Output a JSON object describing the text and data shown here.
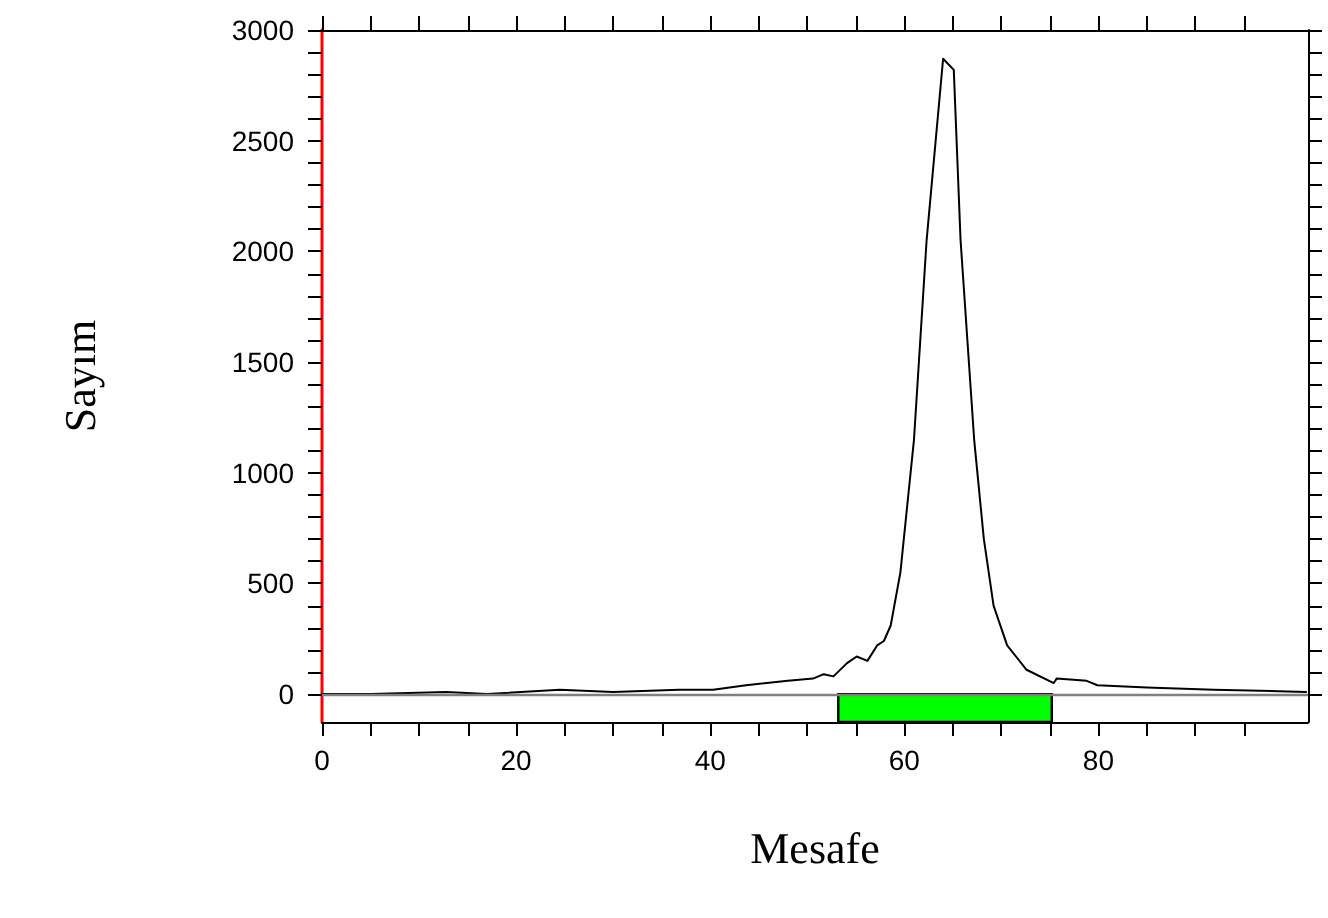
{
  "chart_data": {
    "type": "line",
    "xlabel": "Mesafe",
    "ylabel": "Sayım",
    "x": [
      0,
      5,
      12.8,
      17,
      24.5,
      30,
      36.8,
      40.3,
      43.7,
      48,
      50.6,
      51.7,
      52.7,
      54.1,
      55.1,
      56.2,
      57.2,
      57.9,
      58.6,
      59.6,
      61.0,
      62.3,
      64.0,
      65.1,
      65.8,
      67.2,
      68.2,
      69.2,
      70.6,
      72.6,
      75.4,
      75.7,
      78.8,
      79.9,
      85,
      91.9,
      101.4
    ],
    "series": [
      {
        "color": "#000000",
        "values": [
          0,
          0,
          10,
          0,
          20,
          10,
          20,
          20,
          40,
          60,
          70,
          90,
          80,
          140,
          170,
          150,
          220,
          240,
          310,
          550,
          1150,
          2050,
          2870,
          2820,
          2050,
          1150,
          700,
          400,
          220,
          110,
          50,
          70,
          60,
          40,
          30,
          20,
          10
        ]
      }
    ],
    "xlim": [
      0,
      101.6
    ],
    "xticks": [
      0,
      {
        "value": 5,
        "label": null
      },
      {
        "value": 10,
        "label": null
      },
      {
        "value": 15,
        "label": null
      },
      20,
      {
        "value": 25,
        "label": null
      },
      {
        "value": 30,
        "label": null
      },
      {
        "value": 35,
        "label": null
      },
      40,
      {
        "value": 45,
        "label": null
      },
      {
        "value": 50,
        "label": null
      },
      {
        "value": 55,
        "label": null
      },
      60,
      {
        "value": 65,
        "label": null
      },
      {
        "value": 70,
        "label": null
      },
      {
        "value": 75,
        "label": null
      },
      80,
      {
        "value": 85,
        "label": null
      },
      {
        "value": 90,
        "label": null
      },
      {
        "value": 95,
        "label": null
      }
    ],
    "ylim": [
      -126,
      3000
    ],
    "yticks": [
      0,
      {
        "value": 100,
        "label": null
      },
      {
        "value": 200,
        "label": null
      },
      {
        "value": 300,
        "label": null
      },
      {
        "value": 400,
        "label": null
      },
      500,
      {
        "value": 600,
        "label": null
      },
      {
        "value": 700,
        "label": null
      },
      {
        "value": 800,
        "label": null
      },
      {
        "value": 900,
        "label": null
      },
      1000,
      {
        "value": 1100,
        "label": null
      },
      {
        "value": 1200,
        "label": null
      },
      {
        "value": 1300,
        "label": null
      },
      {
        "value": 1400,
        "label": null
      },
      1500,
      {
        "value": 1600,
        "label": null
      },
      {
        "value": 1700,
        "label": null
      },
      {
        "value": 1800,
        "label": null
      },
      {
        "value": 1900,
        "label": null
      },
      2000,
      {
        "value": 2100,
        "label": null
      },
      {
        "value": 2200,
        "label": null
      },
      {
        "value": 2300,
        "label": null
      },
      {
        "value": 2400,
        "label": null
      },
      2500,
      {
        "value": 2600,
        "label": null
      },
      {
        "value": 2700,
        "label": null
      },
      {
        "value": 2800,
        "label": null
      },
      {
        "value": 2900,
        "label": null
      },
      3000
    ],
    "ref_lines": [
      {
        "axis": "y",
        "value": 0,
        "color": "#808080"
      }
    ],
    "bands": [
      {
        "axis": "x",
        "from": 53.2,
        "to": 75.2,
        "color": "#00ff00"
      }
    ],
    "grid": false,
    "marker": "none",
    "line_style": "solid"
  }
}
